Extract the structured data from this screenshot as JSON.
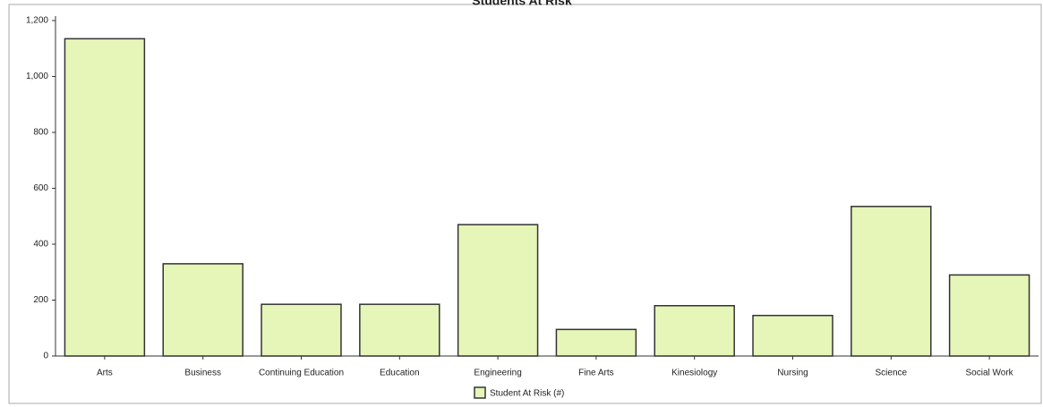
{
  "chart_data": {
    "type": "bar",
    "title": "Students At Risk",
    "categories": [
      "Arts",
      "Business",
      "Continuing Education",
      "Education",
      "Engineering",
      "Fine Arts",
      "Kinesiology",
      "Nursing",
      "Science",
      "Social Work"
    ],
    "series": [
      {
        "name": "Student At Risk (#)",
        "color": "#e6f5b8",
        "values": [
          1135,
          330,
          185,
          185,
          470,
          95,
          180,
          145,
          535,
          290
        ]
      }
    ],
    "ylim": [
      0,
      1200
    ],
    "yticks": [
      0,
      200,
      400,
      600,
      800,
      {
        "value": 1000,
        "label": "1,000"
      },
      {
        "value": 1200,
        "label": "1,200"
      }
    ],
    "grid": false,
    "legend": "bottom"
  }
}
